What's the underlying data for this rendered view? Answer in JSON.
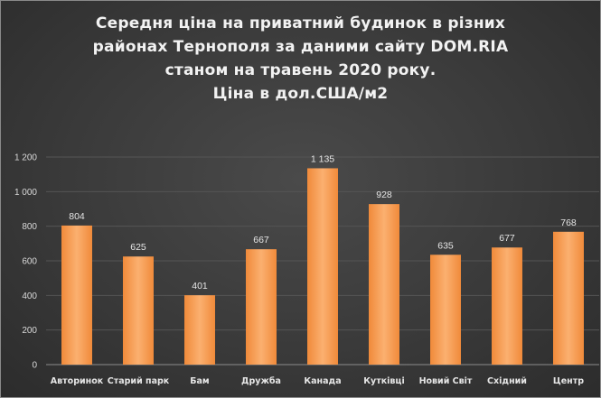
{
  "chart_data": {
    "type": "bar",
    "title_lines": [
      "Середня ціна на приватний будинок в різних",
      "районах Тернополя за даними сайту DOM.RIA",
      "станом на травень 2020 року.",
      "Ціна в дол.США/м2"
    ],
    "categories": [
      "Авторинок",
      "Старий парк",
      "Бам",
      "Дружба",
      "Канада",
      "Кутківці",
      "Новий Світ",
      "Східний",
      "Центр"
    ],
    "values": [
      804,
      625,
      401,
      667,
      1135,
      928,
      635,
      677,
      768
    ],
    "value_labels": [
      "804",
      "625",
      "401",
      "667",
      "1 135",
      "928",
      "635",
      "677",
      "768"
    ],
    "ylim": [
      0,
      1200
    ],
    "yticks": [
      0,
      200,
      400,
      600,
      800,
      1000,
      1200
    ],
    "ytick_labels": [
      "0",
      "200",
      "400",
      "600",
      "800",
      "1 000",
      "1 200"
    ],
    "grid": true,
    "legend": "none",
    "bar_color": "#f79646",
    "background": "#3d3d3d"
  }
}
